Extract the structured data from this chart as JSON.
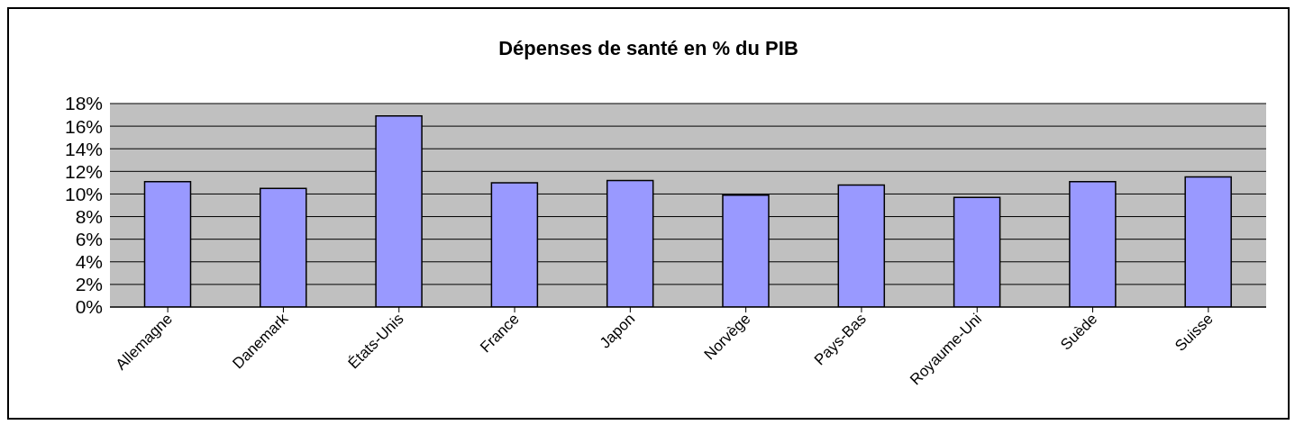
{
  "chart_data": {
    "type": "bar",
    "title": "Dépenses de santé en % du PIB",
    "categories": [
      "Allemagne",
      "Danemark",
      "États-Unis",
      "France",
      "Japon",
      "Norvège",
      "Pays-Bas",
      "Royaume-Uni",
      "Suède",
      "Suisse"
    ],
    "values": [
      11.1,
      10.5,
      16.9,
      11.0,
      11.2,
      9.9,
      10.8,
      9.7,
      11.1,
      11.5
    ],
    "color": "#9999ff",
    "ylim": [
      0,
      18
    ],
    "yticks": [
      {
        "value": 0,
        "label": "0%"
      },
      {
        "value": 2,
        "label": "2%"
      },
      {
        "value": 4,
        "label": "4%"
      },
      {
        "value": 6,
        "label": "6%"
      },
      {
        "value": 8,
        "label": "8%"
      },
      {
        "value": 10,
        "label": "10%"
      },
      {
        "value": 12,
        "label": "12%"
      },
      {
        "value": 14,
        "label": "14%"
      },
      {
        "value": 16,
        "label": "16%"
      },
      {
        "value": 18,
        "label": "18%"
      }
    ],
    "grid": "y",
    "legend": false
  }
}
